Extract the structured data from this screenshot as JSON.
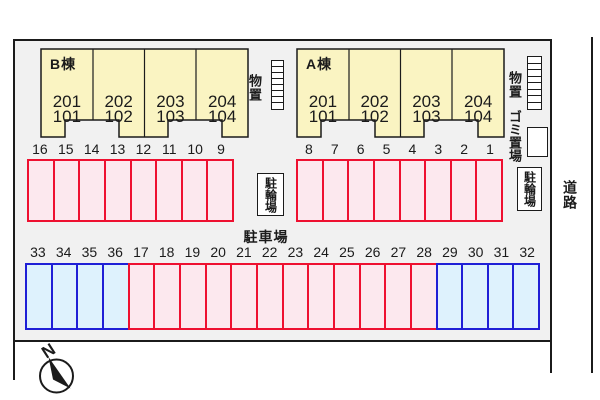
{
  "site": {
    "road_label": "道路",
    "parking_lot_label": "駐車場",
    "bicycle_parking_label": "駐輪場",
    "storage_label": "物置",
    "garbage_label": "ゴミ置場",
    "north_label": "N"
  },
  "colors": {
    "site_bg": "#f1f1f1",
    "building_fill": "#faf4c2",
    "building_stroke": "#1b1b1b",
    "red_stall_fill": "#fce8ee",
    "red_stall_border": "#ee1030",
    "blue_stall_fill": "#def2fd",
    "blue_stall_border": "#1f1fd6"
  },
  "buildings": [
    {
      "name": "B棟",
      "units": [
        {
          "upper": "201",
          "lower": "101"
        },
        {
          "upper": "202",
          "lower": "102"
        },
        {
          "upper": "203",
          "lower": "103"
        },
        {
          "upper": "204",
          "lower": "104"
        }
      ]
    },
    {
      "name": "A棟",
      "units": [
        {
          "upper": "201",
          "lower": "101"
        },
        {
          "upper": "202",
          "lower": "102"
        },
        {
          "upper": "203",
          "lower": "103"
        },
        {
          "upper": "204",
          "lower": "104"
        }
      ]
    }
  ],
  "parking": {
    "row1_left": [
      {
        "n": "16",
        "c": "red"
      },
      {
        "n": "15",
        "c": "red"
      },
      {
        "n": "14",
        "c": "red"
      },
      {
        "n": "13",
        "c": "red"
      },
      {
        "n": "12",
        "c": "red"
      },
      {
        "n": "11",
        "c": "red"
      },
      {
        "n": "10",
        "c": "red"
      },
      {
        "n": "9",
        "c": "red"
      }
    ],
    "row1_right": [
      {
        "n": "8",
        "c": "red"
      },
      {
        "n": "7",
        "c": "red"
      },
      {
        "n": "6",
        "c": "red"
      },
      {
        "n": "5",
        "c": "red"
      },
      {
        "n": "4",
        "c": "red"
      },
      {
        "n": "3",
        "c": "red"
      },
      {
        "n": "2",
        "c": "red"
      },
      {
        "n": "1",
        "c": "red"
      }
    ],
    "row2": [
      {
        "n": "33",
        "c": "blue"
      },
      {
        "n": "34",
        "c": "blue"
      },
      {
        "n": "35",
        "c": "blue"
      },
      {
        "n": "36",
        "c": "blue"
      },
      {
        "n": "17",
        "c": "red"
      },
      {
        "n": "18",
        "c": "red"
      },
      {
        "n": "19",
        "c": "red"
      },
      {
        "n": "20",
        "c": "red"
      },
      {
        "n": "21",
        "c": "red"
      },
      {
        "n": "22",
        "c": "red"
      },
      {
        "n": "23",
        "c": "red"
      },
      {
        "n": "24",
        "c": "red"
      },
      {
        "n": "25",
        "c": "red"
      },
      {
        "n": "26",
        "c": "red"
      },
      {
        "n": "27",
        "c": "red"
      },
      {
        "n": "28",
        "c": "red"
      },
      {
        "n": "29",
        "c": "blue"
      },
      {
        "n": "30",
        "c": "blue"
      },
      {
        "n": "31",
        "c": "blue"
      },
      {
        "n": "32",
        "c": "blue"
      }
    ]
  }
}
